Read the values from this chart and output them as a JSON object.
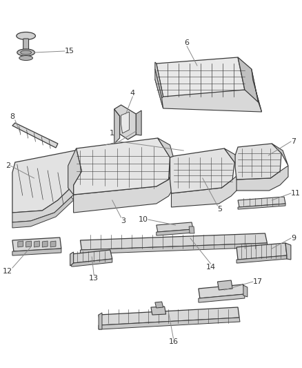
{
  "background_color": "#ffffff",
  "figsize": [
    4.38,
    5.33
  ],
  "dpi": 100,
  "stroke_color": "#3a3a3a",
  "face_color": "#e8e8e8",
  "face_color2": "#d8d8d8",
  "face_dark": "#c0c0c0",
  "text_color": "#333333",
  "leader_color": "#888888"
}
